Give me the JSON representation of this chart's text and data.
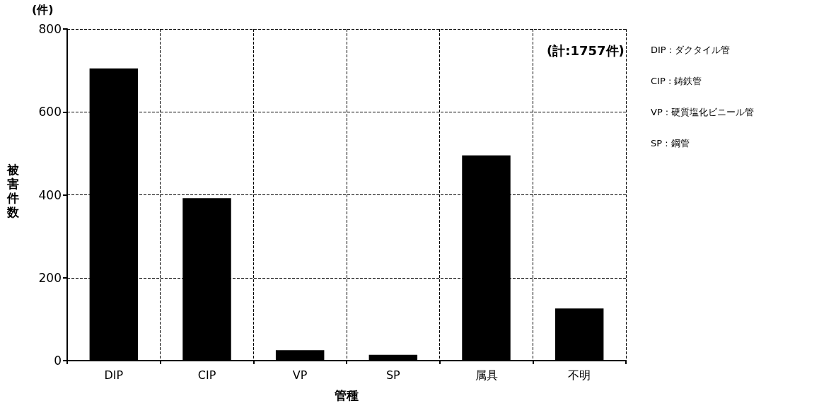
{
  "chart_data": {
    "type": "bar",
    "xlabel": "管種",
    "ylabel": "被害件数",
    "categories": [
      "DIP",
      "CIP",
      "VP",
      "SP",
      "属具",
      "不明"
    ],
    "values": [
      705,
      392,
      25,
      14,
      495,
      126
    ],
    "color": "#000000",
    "ylim": [
      0,
      800
    ],
    "yticks": [
      0,
      200,
      400,
      600,
      800
    ],
    "grid": true,
    "annotations": [
      "(件)",
      "(計:1757件)",
      "DIP : ダクタイル管",
      "CIP : 鋳鉄管",
      "VP : 硬質塩化ビニール管",
      "SP : 鋼管"
    ]
  }
}
